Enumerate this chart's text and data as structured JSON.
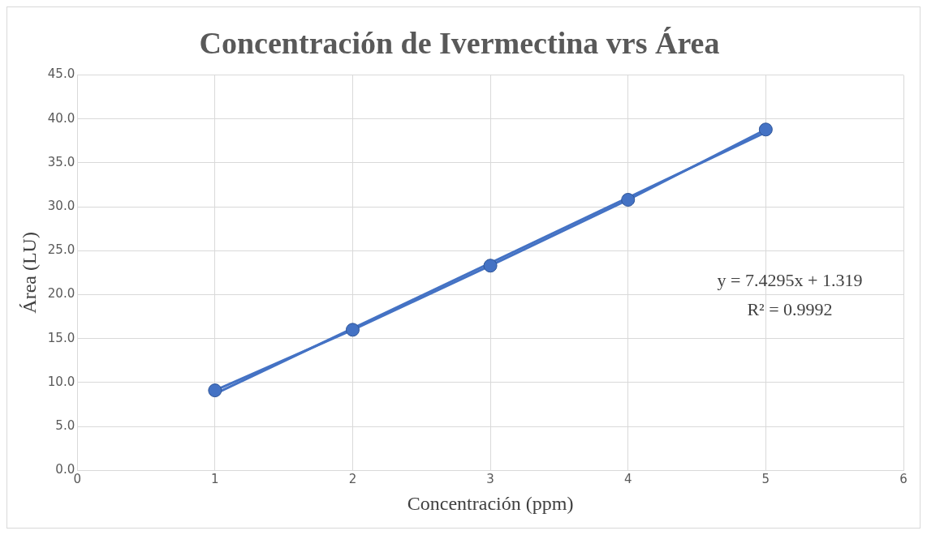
{
  "chart_data": {
    "type": "line",
    "title": "Concentración de Ivermectina vrs Área",
    "xlabel": "Concentración (ppm)",
    "ylabel": "Área (LU)",
    "x": [
      1,
      2,
      3,
      4,
      5
    ],
    "series": [
      {
        "color": "#4472c4",
        "values": [
          9.1,
          16.0,
          23.3,
          30.8,
          38.8
        ],
        "marker": "circle"
      },
      {
        "color": "#4472c4",
        "x": [
          1,
          5
        ],
        "values": [
          8.7,
          38.5
        ],
        "marker": "none"
      }
    ],
    "xlim": [
      0,
      6
    ],
    "xticks": [
      0,
      1,
      2,
      3,
      4,
      5,
      6
    ],
    "ylim": [
      0,
      45
    ],
    "yticks": [
      {
        "value": 0,
        "label": "0.0"
      },
      {
        "value": 5,
        "label": "5.0"
      },
      {
        "value": 10,
        "label": "10.0"
      },
      {
        "value": 15,
        "label": "15.0"
      },
      {
        "value": 20,
        "label": "20.0"
      },
      {
        "value": 25,
        "label": "25.0"
      },
      {
        "value": 30,
        "label": "30.0"
      },
      {
        "value": 35,
        "label": "35.0"
      },
      {
        "value": 40,
        "label": "40.0"
      },
      {
        "value": 45,
        "label": "45.0"
      }
    ],
    "annotations": [
      "y = 7.4295x + 1.319",
      "R² = 0.9992"
    ],
    "grid": true,
    "legend": false
  }
}
